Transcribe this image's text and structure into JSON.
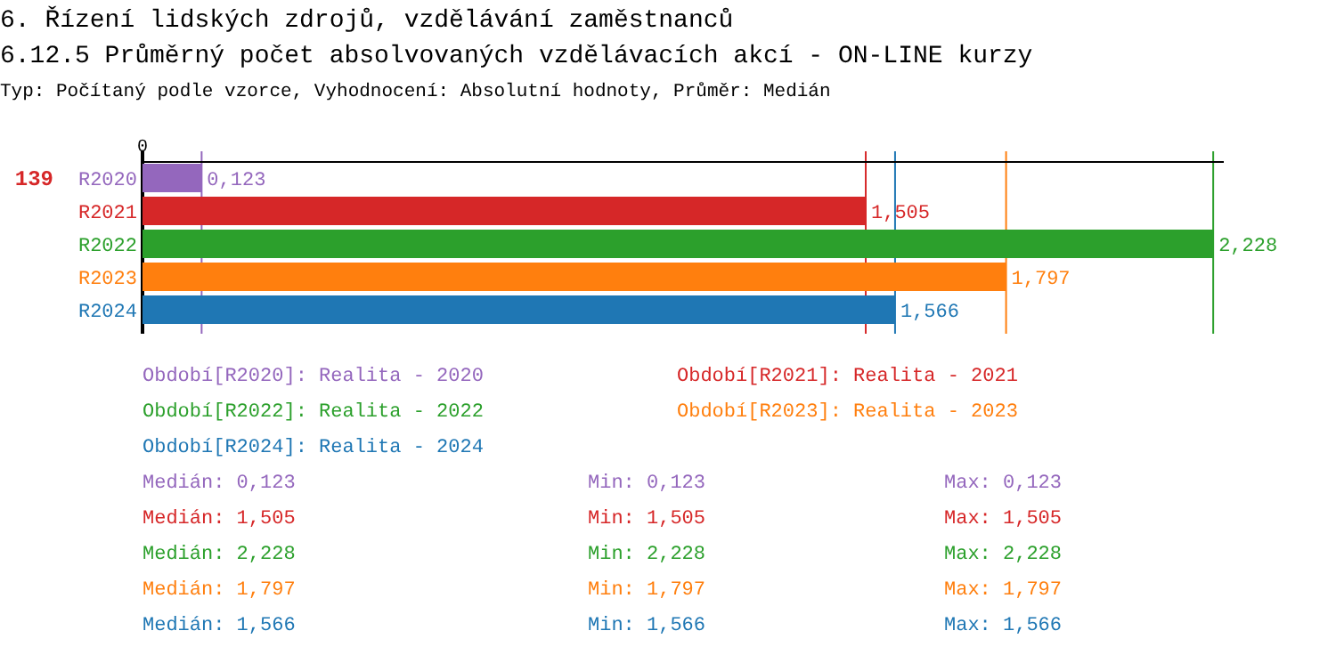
{
  "chart_data": {
    "type": "bar",
    "orientation": "horizontal",
    "title": "6. Řízení lidských zdrojů, vzdělávání zaměstnanců",
    "subtitle": "6.12.5 Průměrný počet absolvovaných vzdělávacích akcí - ON-LINE kurzy",
    "categories": [
      "R2020",
      "R2021",
      "R2022",
      "R2023",
      "R2024"
    ],
    "values": [
      0.123,
      1.505,
      2.228,
      1.797,
      1.566
    ],
    "colors": [
      "#9467bd",
      "#d62728",
      "#2ca02c",
      "#ff7f0e",
      "#1f77b4"
    ],
    "value_labels": [
      "0,123",
      "1,505",
      "2,228",
      "1,797",
      "1,566"
    ],
    "xlim": [
      0,
      2.25
    ],
    "ref_lines": [
      {
        "axis": "x",
        "value": 0.123,
        "color": "#9467bd"
      },
      {
        "axis": "x",
        "value": 1.505,
        "color": "#d62728"
      },
      {
        "axis": "x",
        "value": 2.228,
        "color": "#2ca02c"
      },
      {
        "axis": "x",
        "value": 1.797,
        "color": "#ff7f0e"
      },
      {
        "axis": "x",
        "value": 1.566,
        "color": "#1f77b4"
      }
    ],
    "annotations": [
      "0",
      "Typ: Počítaný podle vzorce, Vyhodnocení: Absolutní hodnoty, Průměr: Medián",
      "139",
      "Období[R2020]: Realita - 2020",
      "Období[R2021]: Realita - 2021",
      "Období[R2022]: Realita - 2022",
      "Období[R2023]: Realita - 2023",
      "Období[R2024]: Realita - 2024",
      "Medián: 0,123",
      "Min: 0,123",
      "Max: 0,123",
      "Medián: 1,505",
      "Min: 1,505",
      "Max: 1,505",
      "Medián: 2,228",
      "Min: 2,228",
      "Max: 2,228",
      "Medián: 1,797",
      "Min: 1,797",
      "Max: 1,797",
      "Medián: 1,566",
      "Min: 1,566",
      "Max: 1,566"
    ]
  }
}
